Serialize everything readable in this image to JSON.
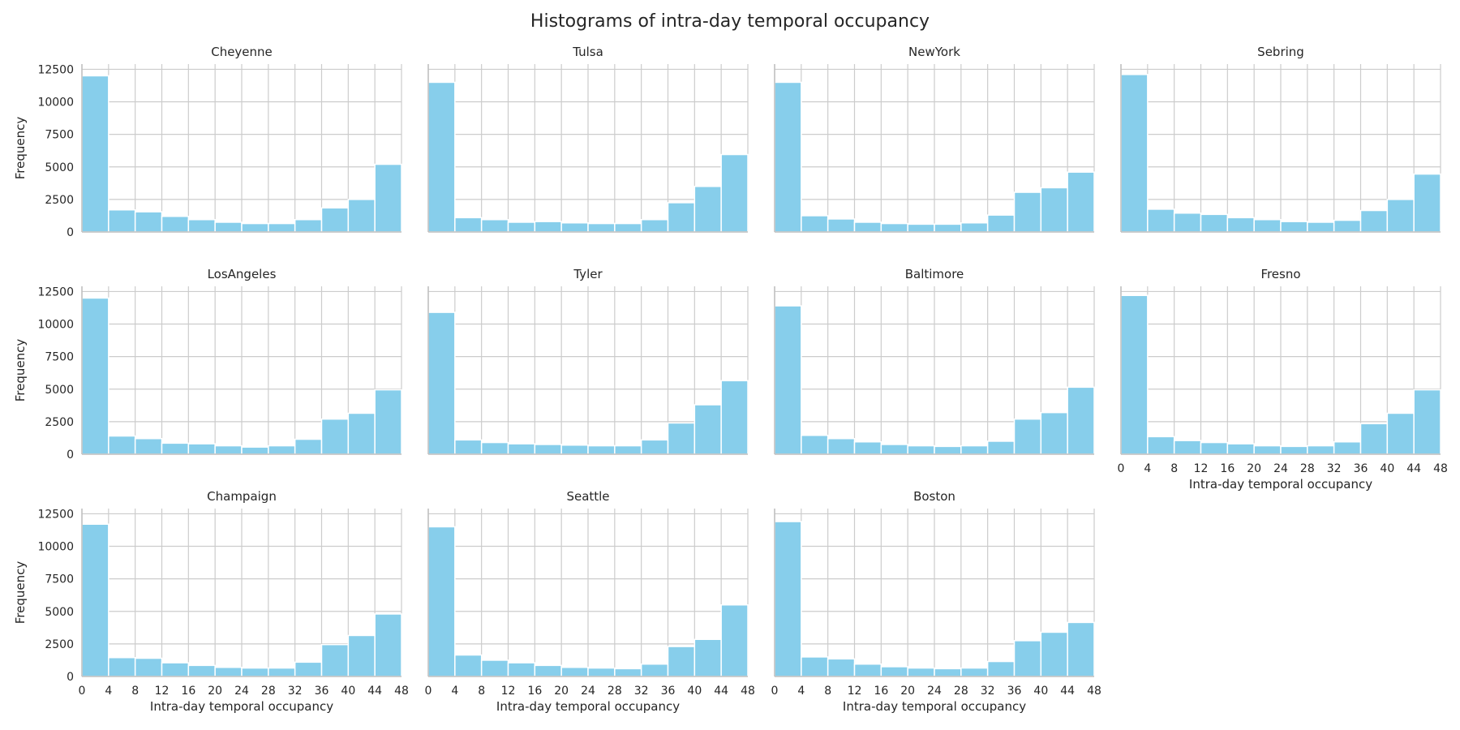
{
  "chart_data": {
    "type": "bar",
    "title": "Histograms of intra-day temporal occupancy",
    "xlabel": "Intra-day temporal occupancy",
    "ylabel": "Frequency",
    "xlim": [
      0,
      48
    ],
    "ylim": [
      0,
      12900
    ],
    "xticks": [
      0,
      4,
      8,
      12,
      16,
      20,
      24,
      28,
      32,
      36,
      40,
      44,
      48
    ],
    "yticks": [
      0,
      2500,
      5000,
      7500,
      10000,
      12500
    ],
    "bin_edges": [
      0,
      4,
      8,
      12,
      16,
      20,
      24,
      28,
      32,
      36,
      40,
      44,
      48
    ],
    "grid": true,
    "bar_color": "#87CEEB",
    "panels": [
      {
        "title": "Cheyenne",
        "values": [
          12000,
          1700,
          1550,
          1200,
          950,
          750,
          650,
          650,
          950,
          1850,
          2500,
          5200
        ]
      },
      {
        "title": "Tulsa",
        "values": [
          11500,
          1100,
          950,
          750,
          800,
          700,
          650,
          650,
          950,
          2250,
          3500,
          5950
        ]
      },
      {
        "title": "NewYork",
        "values": [
          11500,
          1250,
          1000,
          750,
          650,
          600,
          600,
          700,
          1300,
          3050,
          3400,
          4600
        ]
      },
      {
        "title": "Sebring",
        "values": [
          12100,
          1750,
          1450,
          1350,
          1100,
          950,
          800,
          750,
          900,
          1650,
          2500,
          4450
        ]
      },
      {
        "title": "LosAngeles",
        "values": [
          12000,
          1400,
          1200,
          850,
          800,
          650,
          550,
          650,
          1150,
          2700,
          3150,
          4950
        ]
      },
      {
        "title": "Tyler",
        "values": [
          10900,
          1100,
          900,
          800,
          750,
          700,
          650,
          650,
          1100,
          2400,
          3800,
          5650
        ]
      },
      {
        "title": "Baltimore",
        "values": [
          11400,
          1450,
          1200,
          950,
          750,
          650,
          600,
          650,
          1000,
          2700,
          3200,
          5150
        ]
      },
      {
        "title": "Fresno",
        "values": [
          12200,
          1350,
          1050,
          900,
          800,
          650,
          600,
          650,
          950,
          2350,
          3150,
          4950
        ]
      },
      {
        "title": "Champaign",
        "values": [
          11700,
          1450,
          1400,
          1050,
          850,
          700,
          650,
          650,
          1100,
          2450,
          3150,
          4800
        ]
      },
      {
        "title": "Seattle",
        "values": [
          11500,
          1650,
          1250,
          1050,
          850,
          700,
          650,
          600,
          950,
          2300,
          2850,
          5500
        ]
      },
      {
        "title": "Boston",
        "values": [
          11900,
          1500,
          1350,
          950,
          750,
          650,
          600,
          650,
          1150,
          2750,
          3400,
          4150
        ]
      }
    ]
  }
}
